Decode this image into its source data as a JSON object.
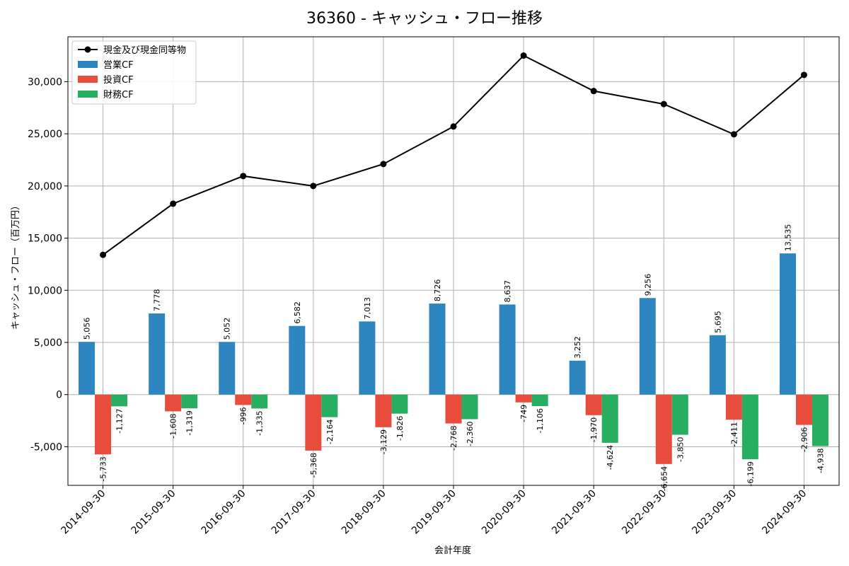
{
  "chart_data": {
    "type": "bar",
    "title": "36360 - キャッシュ・フロー推移",
    "xlabel": "会計年度",
    "ylabel": "キャッシュ・フロー（百万円）",
    "categories": [
      "2014-09-30",
      "2015-09-30",
      "2016-09-30",
      "2017-09-30",
      "2018-09-30",
      "2019-09-30",
      "2020-09-30",
      "2021-09-30",
      "2022-09-30",
      "2023-09-30",
      "2024-09-30"
    ],
    "ylim": [
      -8700,
      34300
    ],
    "yticks": [
      -5000,
      0,
      5000,
      10000,
      15000,
      20000,
      25000,
      30000
    ],
    "ytick_labels": [
      "-5,000",
      "0",
      "5,000",
      "10,000",
      "15,000",
      "20,000",
      "25,000",
      "30,000"
    ],
    "grid": true,
    "legend_position": "top-left",
    "line_series": {
      "name": "現金及び現金同等物",
      "color": "#000000",
      "values": [
        13400,
        18300,
        20950,
        20000,
        22100,
        25700,
        32500,
        29100,
        27850,
        24950,
        30650
      ]
    },
    "series": [
      {
        "name": "営業CF",
        "color": "#2e86c1",
        "values": [
          5056,
          7778,
          5052,
          6582,
          7013,
          8726,
          8637,
          3252,
          9256,
          5695,
          13535
        ],
        "labels": [
          "5,056",
          "7,778",
          "5,052",
          "6,582",
          "7,013",
          "8,726",
          "8,637",
          "3,252",
          "9,256",
          "5,695",
          "13,535"
        ]
      },
      {
        "name": "投資CF",
        "color": "#e74c3c",
        "values": [
          -5733,
          -1608,
          -996,
          -5368,
          -3129,
          -2768,
          -749,
          -1970,
          -6654,
          -2411,
          -2906
        ],
        "labels": [
          "-5,733",
          "-1,608",
          "-996",
          "-5,368",
          "-3,129",
          "-2,768",
          "-749",
          "-1,970",
          "-6,654",
          "-2,411",
          "-2,906"
        ]
      },
      {
        "name": "財務CF",
        "color": "#27ae60",
        "values": [
          -1127,
          -1319,
          -1335,
          -2164,
          -1826,
          -2360,
          -1106,
          -4624,
          -3850,
          -6199,
          -4938
        ],
        "labels": [
          "-1,127",
          "-1,319",
          "-1,335",
          "-2,164",
          "-1,826",
          "-2,360",
          "-1,106",
          "-4,624",
          "-3,850",
          "-6,199",
          "-4,938"
        ]
      }
    ]
  }
}
